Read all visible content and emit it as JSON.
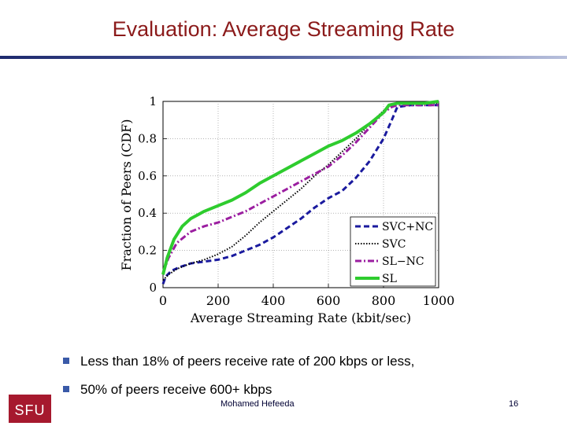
{
  "slide": {
    "title": "Evaluation: Average Streaming Rate",
    "bullets": [
      "Less than 18% of peers receive rate of 200 kbps or less,",
      "50% of peers receive 600+ kbps"
    ],
    "author": "Mohamed  Hefeeda",
    "page_number": "16",
    "logo_text": "SFU"
  },
  "colors": {
    "title": "#8b1a1a",
    "bullet": "#3a5aa8",
    "logo": "#a6192e"
  },
  "chart_data": {
    "type": "line",
    "title": "",
    "xlabel": "Average Streaming Rate (kbit/sec)",
    "ylabel": "Fraction of Peers (CDF)",
    "xlim": [
      0,
      1000
    ],
    "ylim": [
      0,
      1
    ],
    "xticks": [
      0,
      200,
      400,
      600,
      800,
      1000
    ],
    "yticks": [
      0,
      0.2,
      0.4,
      0.6,
      0.8,
      1
    ],
    "xtick_labels": [
      "0",
      "200",
      "400",
      "600",
      "800",
      "1000"
    ],
    "ytick_labels": [
      "0",
      "0.2",
      "0.4",
      "0.6",
      "0.8",
      "1"
    ],
    "grid": true,
    "legend_position": "bottom-right",
    "series": [
      {
        "name": "SVC+NC",
        "color": "#1a1a9e",
        "style": "dashed",
        "x": [
          0,
          10,
          30,
          60,
          100,
          150,
          200,
          250,
          300,
          350,
          400,
          450,
          500,
          550,
          600,
          650,
          700,
          750,
          800,
          830,
          850,
          900,
          950,
          1000
        ],
        "y": [
          0.02,
          0.06,
          0.09,
          0.11,
          0.13,
          0.14,
          0.15,
          0.17,
          0.2,
          0.23,
          0.27,
          0.32,
          0.37,
          0.43,
          0.48,
          0.52,
          0.59,
          0.68,
          0.8,
          0.9,
          0.97,
          0.98,
          0.98,
          0.98
        ]
      },
      {
        "name": "SVC",
        "color": "#000000",
        "style": "dotted",
        "x": [
          0,
          20,
          50,
          100,
          150,
          200,
          250,
          300,
          350,
          400,
          450,
          500,
          550,
          600,
          650,
          700,
          750,
          800,
          830,
          850,
          900,
          1000
        ],
        "y": [
          0.04,
          0.07,
          0.1,
          0.13,
          0.15,
          0.18,
          0.22,
          0.28,
          0.35,
          0.41,
          0.47,
          0.53,
          0.6,
          0.66,
          0.73,
          0.8,
          0.88,
          0.95,
          0.98,
          0.99,
          0.99,
          0.99
        ]
      },
      {
        "name": "SL−NC",
        "color": "#9b1ea0",
        "style": "dashdot",
        "x": [
          0,
          20,
          50,
          100,
          150,
          200,
          250,
          300,
          350,
          400,
          450,
          500,
          550,
          600,
          650,
          700,
          750,
          800,
          830,
          850,
          900,
          950,
          1000
        ],
        "y": [
          0.08,
          0.16,
          0.24,
          0.3,
          0.33,
          0.35,
          0.38,
          0.41,
          0.45,
          0.49,
          0.53,
          0.57,
          0.61,
          0.65,
          0.71,
          0.78,
          0.86,
          0.94,
          0.97,
          0.98,
          0.98,
          0.98,
          0.98
        ]
      },
      {
        "name": "SL",
        "color": "#2ecc2e",
        "style": "solid",
        "x": [
          0,
          15,
          40,
          70,
          100,
          150,
          200,
          250,
          300,
          350,
          400,
          450,
          500,
          550,
          600,
          650,
          700,
          750,
          800,
          820,
          850,
          900,
          950,
          1000
        ],
        "y": [
          0.07,
          0.16,
          0.26,
          0.33,
          0.37,
          0.41,
          0.44,
          0.47,
          0.51,
          0.56,
          0.6,
          0.64,
          0.68,
          0.72,
          0.76,
          0.79,
          0.83,
          0.88,
          0.94,
          0.98,
          0.99,
          0.99,
          0.99,
          1.0
        ]
      }
    ]
  }
}
